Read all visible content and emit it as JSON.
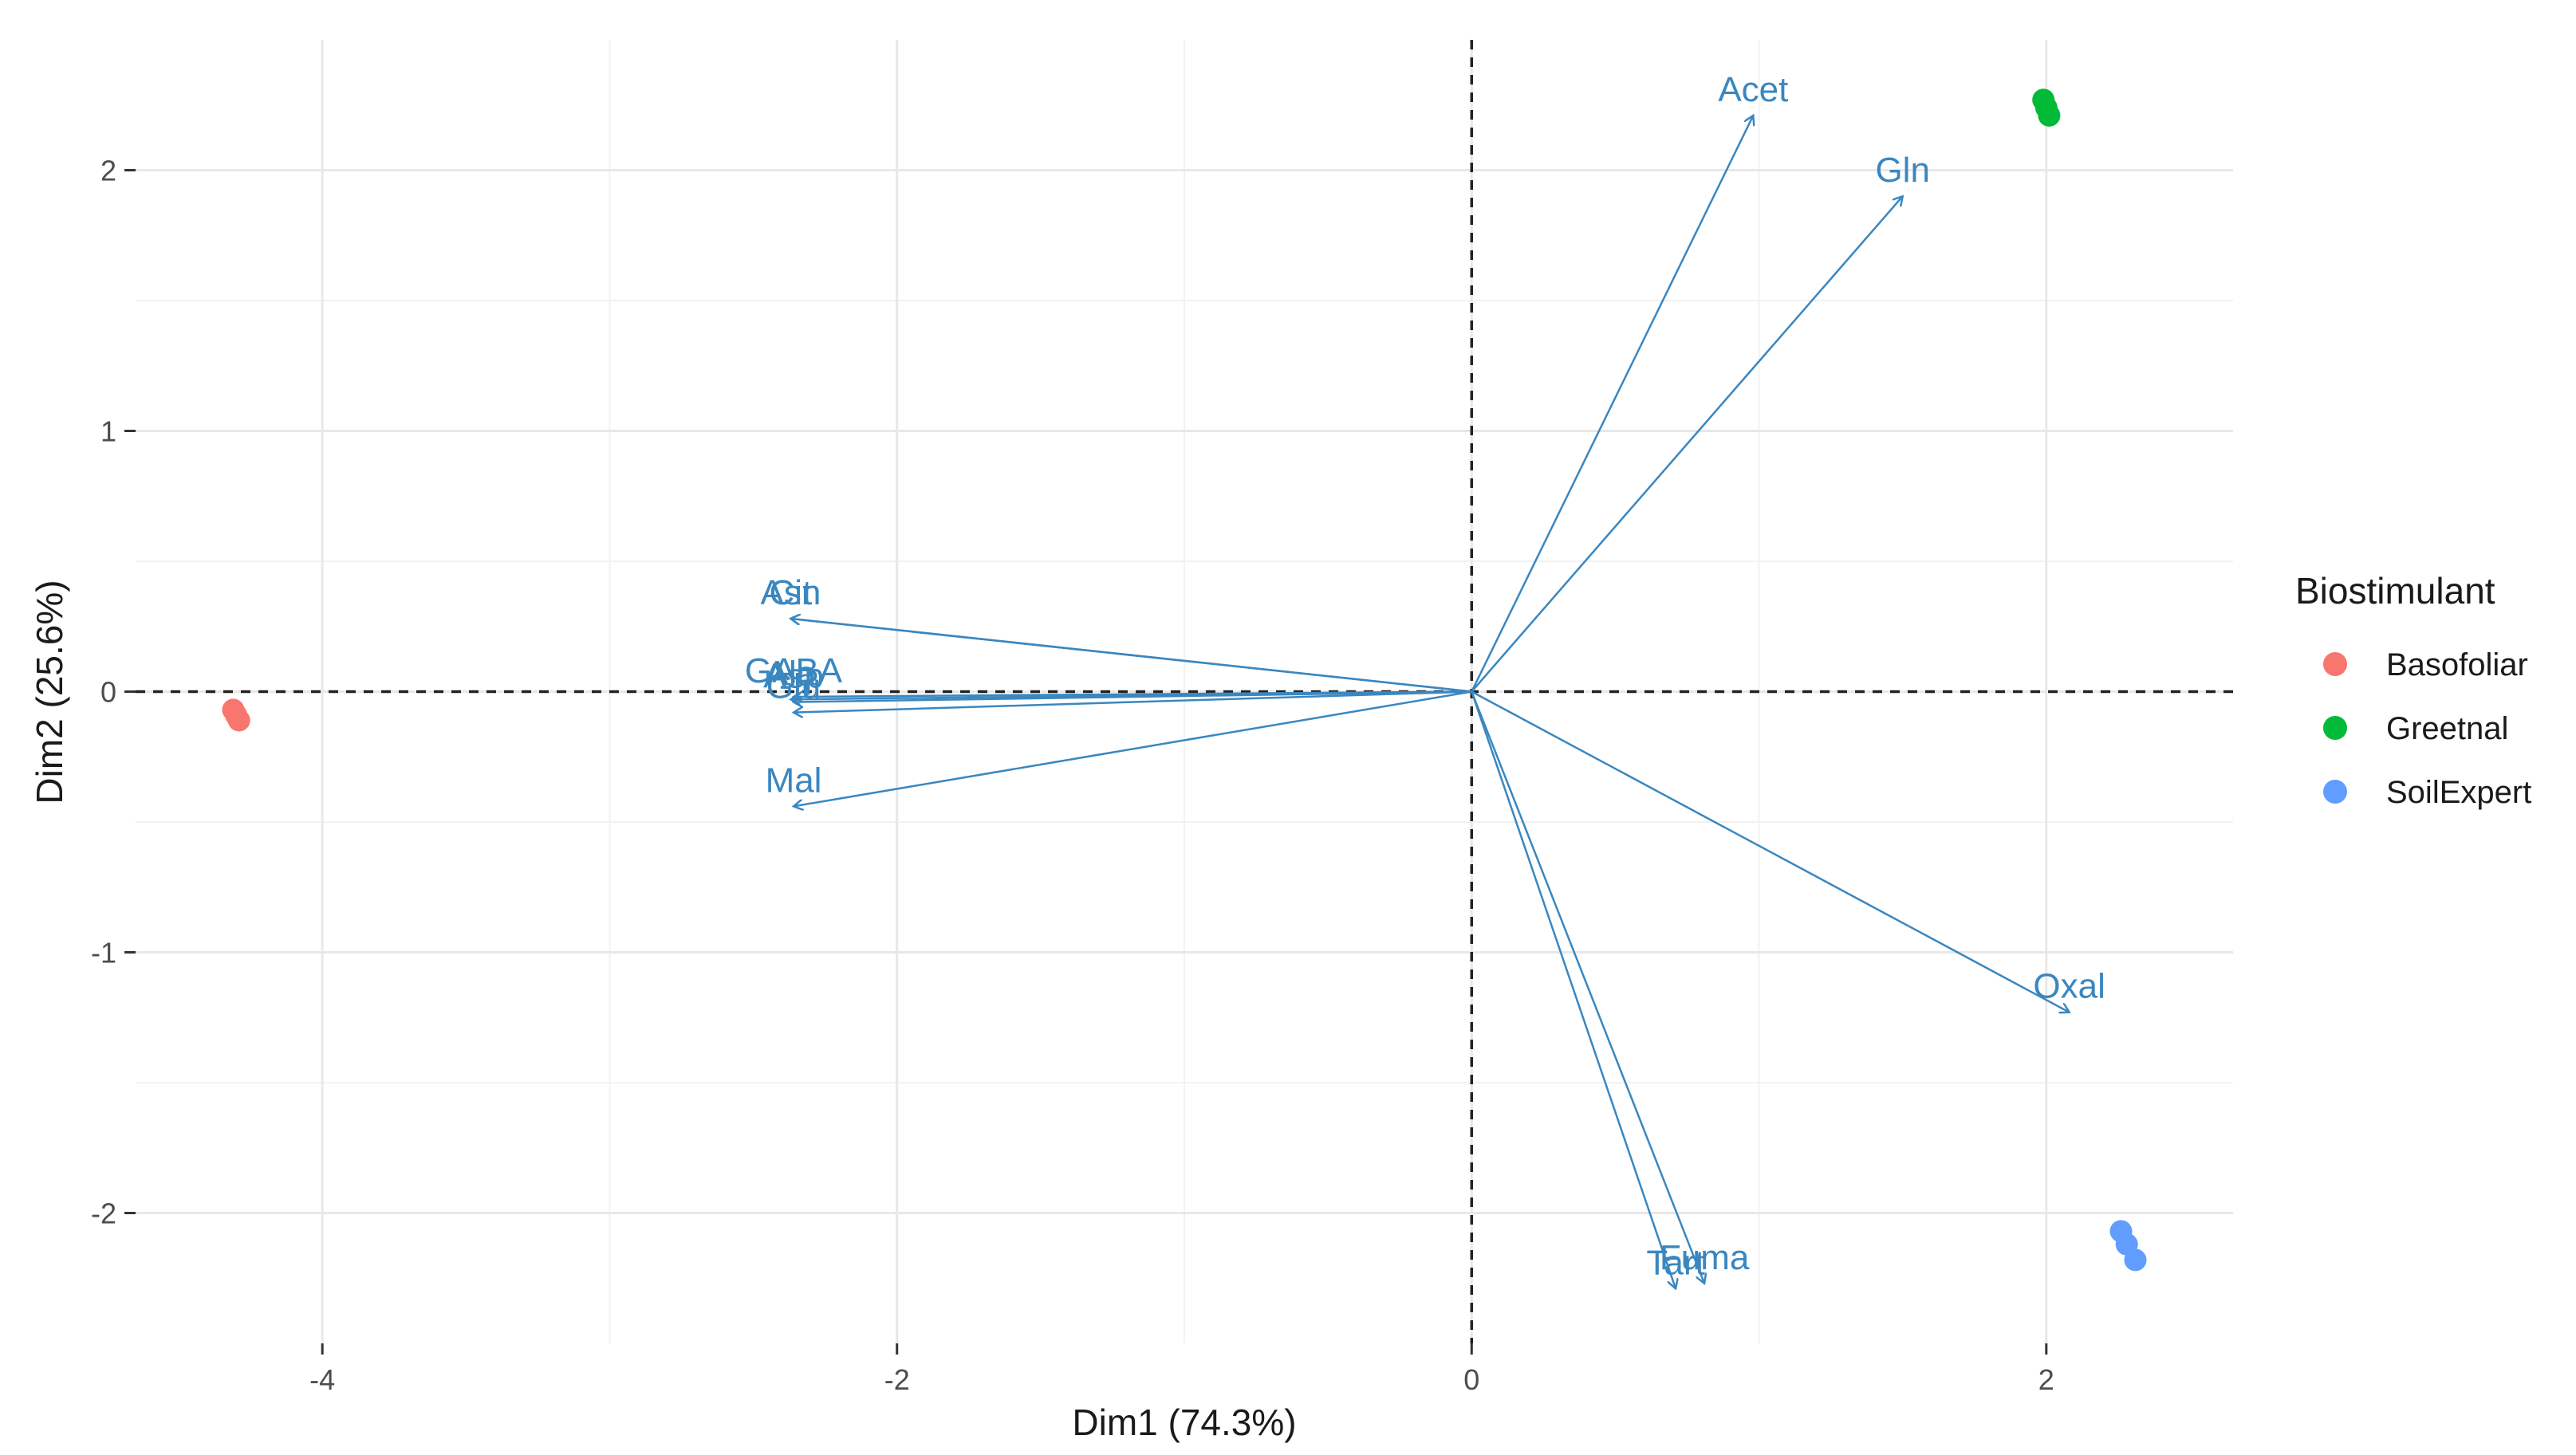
{
  "chart_data": {
    "type": "scatter",
    "subtype": "pca-biplot",
    "xlabel": "Dim1 (74.3%)",
    "ylabel": "Dim2 (25.6%)",
    "xlim": [
      -4.65,
      2.65
    ],
    "ylim": [
      -2.5,
      2.5
    ],
    "xticks": [
      -4,
      -2,
      0,
      2
    ],
    "xtick_labels": [
      "-4",
      "-2",
      "0",
      "2"
    ],
    "yticks": [
      -2,
      -1,
      0,
      1,
      2
    ],
    "ytick_labels": [
      "-2",
      "-1",
      "0",
      "1",
      "2"
    ],
    "grid": true,
    "reference_lines": {
      "x": 0,
      "y": 0,
      "style": "dashed"
    },
    "arrow_color": "#3a87c0",
    "variables": [
      {
        "name": "Acet",
        "x": 0.98,
        "y": 2.21
      },
      {
        "name": "Gln",
        "x": 1.5,
        "y": 1.9
      },
      {
        "name": "Asn",
        "x": -2.37,
        "y": 0.28
      },
      {
        "name": "Cit",
        "x": -2.37,
        "y": 0.28
      },
      {
        "name": "GABA",
        "x": -2.36,
        "y": -0.02
      },
      {
        "name": "Ala",
        "x": -2.37,
        "y": -0.03
      },
      {
        "name": "Asp",
        "x": -2.36,
        "y": -0.04
      },
      {
        "name": "Glu",
        "x": -2.36,
        "y": -0.08
      },
      {
        "name": "Mal",
        "x": -2.36,
        "y": -0.44
      },
      {
        "name": "Oxal",
        "x": 2.08,
        "y": -1.23
      },
      {
        "name": "Tart",
        "x": 0.71,
        "y": -2.29
      },
      {
        "name": "Fuma",
        "x": 0.81,
        "y": -2.27
      }
    ],
    "series": [
      {
        "name": "Basofoliar",
        "color": "#f8766d",
        "points": [
          [
            -4.31,
            -0.07
          ],
          [
            -4.3,
            -0.09
          ],
          [
            -4.29,
            -0.11
          ]
        ]
      },
      {
        "name": "Greetnal",
        "color": "#00ba38",
        "points": [
          [
            1.99,
            2.27
          ],
          [
            2.0,
            2.24
          ],
          [
            2.01,
            2.21
          ]
        ]
      },
      {
        "name": "SoilExpert",
        "color": "#619cff",
        "points": [
          [
            2.26,
            -2.07
          ],
          [
            2.28,
            -2.12
          ],
          [
            2.31,
            -2.18
          ]
        ]
      }
    ],
    "legend": {
      "title": "Biostimulant",
      "position": "right"
    }
  }
}
